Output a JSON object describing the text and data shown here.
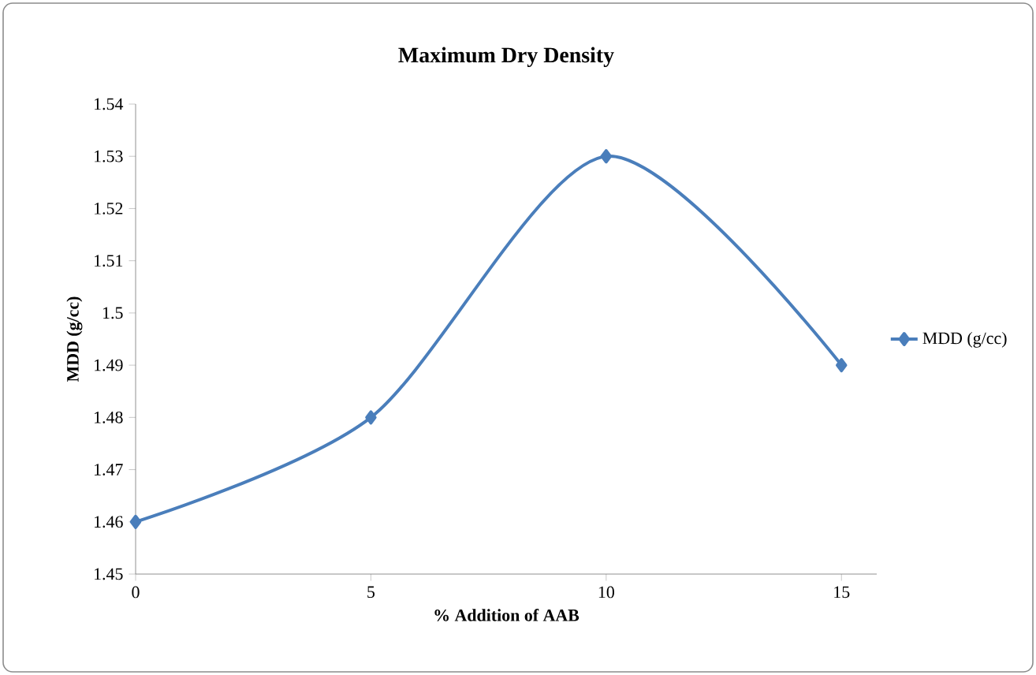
{
  "chart_data": {
    "type": "line",
    "title": "Maximum  Dry Density",
    "xlabel": "% Addition of AAB",
    "ylabel": "MDD (g/cc)",
    "categories": [
      "0",
      "5",
      "10",
      "15"
    ],
    "series": [
      {
        "name": "MDD (g/cc)",
        "color": "#4a7ebb",
        "values": [
          1.46,
          1.48,
          1.53,
          1.49
        ]
      }
    ],
    "ylim": [
      1.45,
      1.54
    ],
    "yticks": [
      1.45,
      1.46,
      1.47,
      1.48,
      1.49,
      1.5,
      1.51,
      1.52,
      1.53,
      1.54
    ],
    "legend": "right",
    "marker": "diamond",
    "line_style": "solid",
    "grid": false
  }
}
